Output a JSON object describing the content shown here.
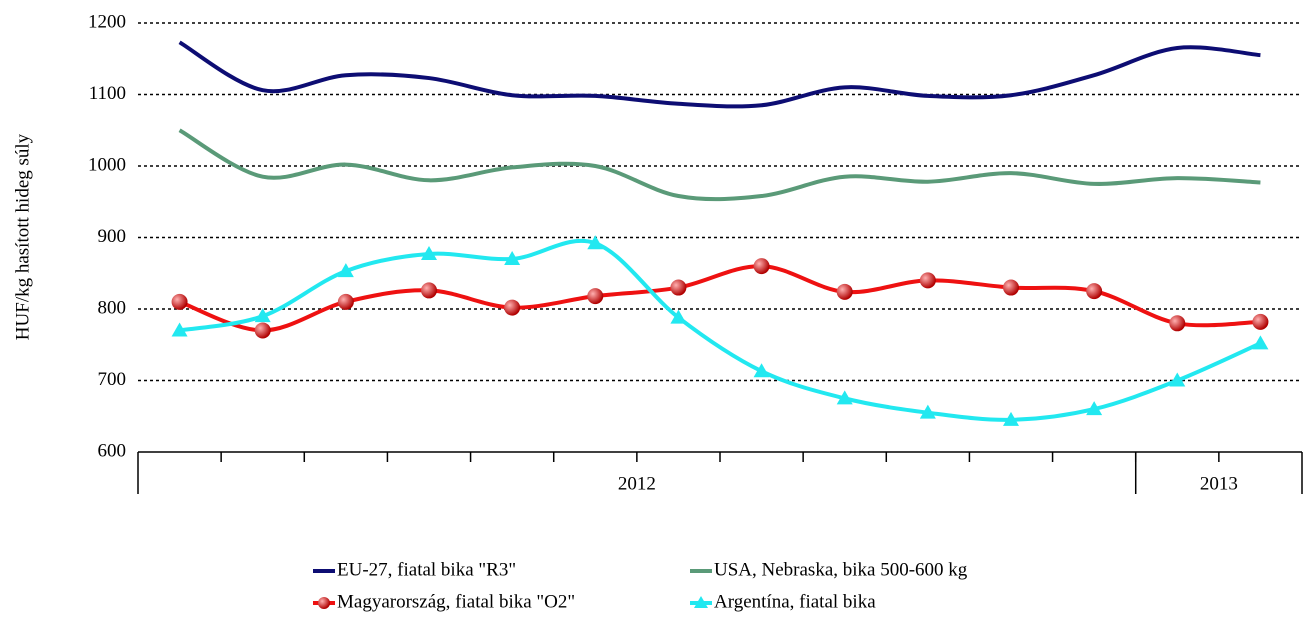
{
  "chart_data": {
    "type": "line",
    "y_label": "HUF/kg hasított hideg súly",
    "categories": [
      null,
      null,
      null,
      null,
      null,
      null,
      null,
      null,
      null,
      null,
      null,
      null,
      null,
      null
    ],
    "x_groups": [
      {
        "label": "2012",
        "span": 12
      },
      {
        "label": "2013",
        "span": 2
      }
    ],
    "ylim": [
      600,
      1200
    ],
    "yticks": [
      600,
      700,
      800,
      900,
      1000,
      1100,
      1200
    ],
    "grid": true,
    "series": [
      {
        "name": "EU-27, fiatal bika \"R3\"",
        "color": "#0d0d73",
        "marker": "none",
        "values": [
          1173,
          1106,
          1127,
          1123,
          1099,
          1098,
          1087,
          1085,
          1110,
          1098,
          1099,
          1127,
          1165,
          1155
        ]
      },
      {
        "name": "Magyarország, fiatal bika \"O2\"",
        "color": "#ee1111",
        "marker": "circle",
        "values": [
          810,
          770,
          810,
          826,
          802,
          818,
          830,
          860,
          824,
          840,
          830,
          825,
          780,
          782
        ]
      },
      {
        "name": "USA, Nebraska, bika 500-600 kg",
        "color": "#5a9a78",
        "marker": "none",
        "values": [
          1050,
          985,
          1002,
          980,
          998,
          1000,
          958,
          958,
          985,
          978,
          990,
          975,
          983,
          977
        ]
      },
      {
        "name": "Argentína, fiatal bika",
        "color": "#22e8f0",
        "marker": "triangle",
        "values": [
          770,
          790,
          853,
          877,
          870,
          892,
          788,
          713,
          675,
          655,
          645,
          660,
          700,
          752
        ]
      }
    ],
    "legend": "bottom"
  }
}
